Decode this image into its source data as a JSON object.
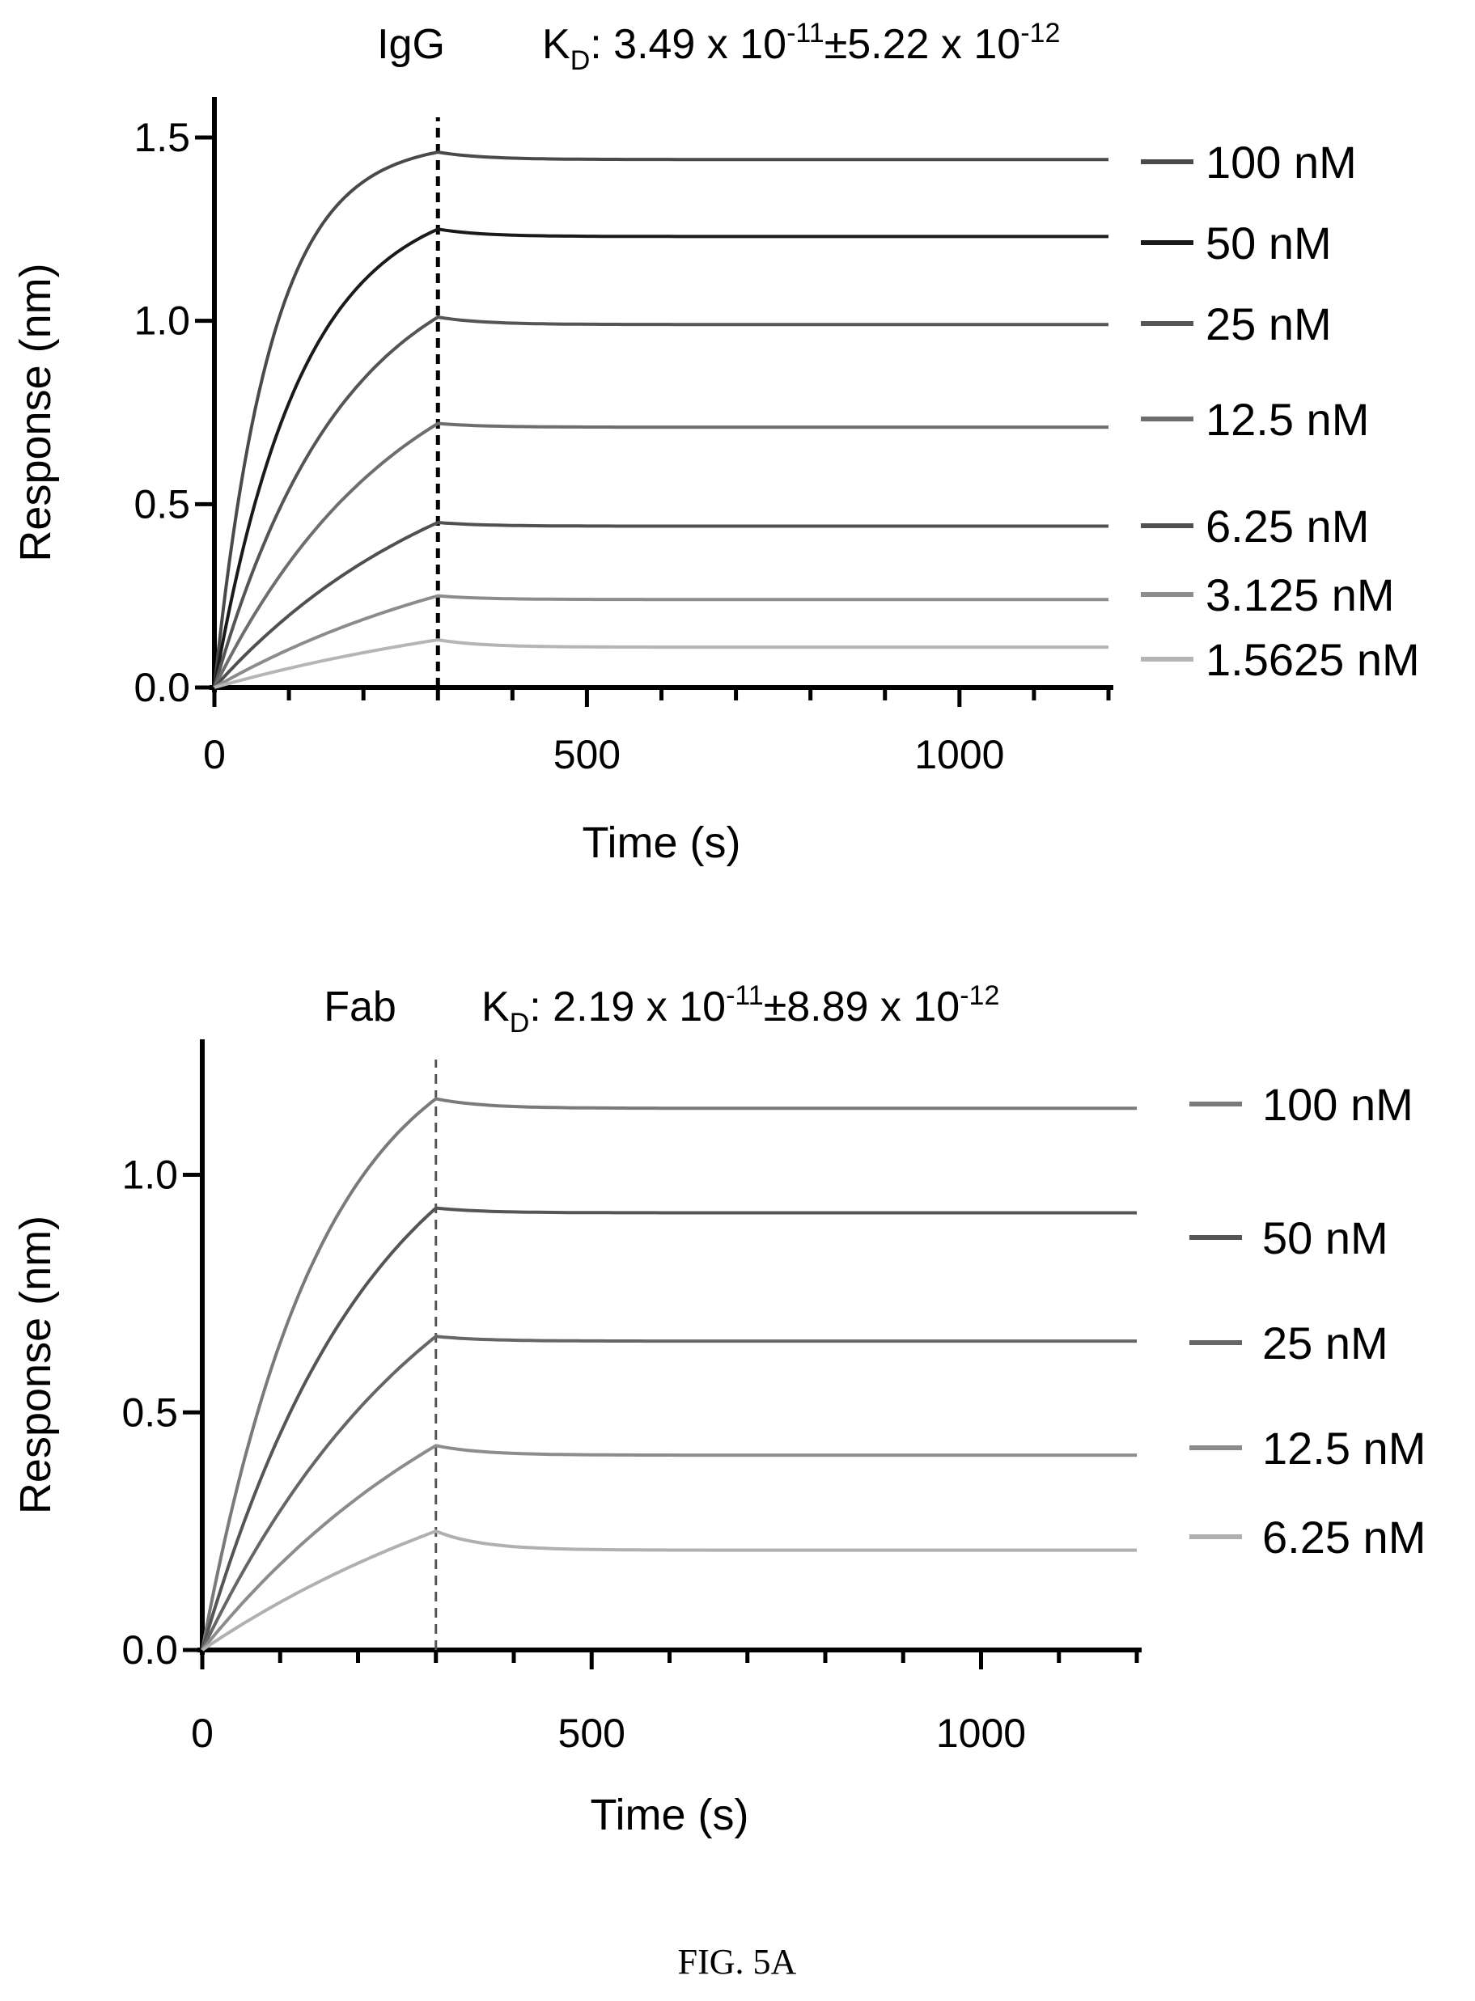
{
  "figure_caption": "FIG. 5A",
  "chart_data": [
    {
      "type": "line",
      "title": "IgG",
      "kd": {
        "label": "K",
        "subscript": "D",
        "mantissa": "3.49 x 10",
        "exponent": "-11",
        "pm": "±",
        "err_mantissa": "5.22 x 10",
        "err_exponent": "-12"
      },
      "xlabel": "Time (s)",
      "ylabel": "Response (nm)",
      "xlim": [
        0,
        1200
      ],
      "ylim": [
        0,
        1.5
      ],
      "x_ticks": [
        0,
        500,
        1000
      ],
      "x_tick_labels": [
        "0",
        "500",
        "1000"
      ],
      "y_ticks": [
        0,
        0.5,
        1.0,
        1.5
      ],
      "y_tick_labels": [
        "0.0",
        "0.5",
        "1.0",
        "1.5"
      ],
      "dissociation_start_s": 300,
      "legend_position": "right",
      "series": [
        {
          "name": "100 nM",
          "peak": 1.46,
          "end": 1.44,
          "k_on": 0.013,
          "color": "#4a4a4a"
        },
        {
          "name": "50 nM",
          "peak": 1.25,
          "end": 1.23,
          "k_on": 0.0085,
          "color": "#1a1a1a"
        },
        {
          "name": "25 nM",
          "peak": 1.01,
          "end": 0.99,
          "k_on": 0.0058,
          "color": "#555555"
        },
        {
          "name": "12.5 nM",
          "peak": 0.72,
          "end": 0.71,
          "k_on": 0.004,
          "color": "#6e6e6e"
        },
        {
          "name": "6.25 nM",
          "peak": 0.45,
          "end": 0.44,
          "k_on": 0.003,
          "color": "#505050"
        },
        {
          "name": "3.125 nM",
          "peak": 0.25,
          "end": 0.24,
          "k_on": 0.0024,
          "color": "#8c8c8c"
        },
        {
          "name": "1.5625 nM",
          "peak": 0.13,
          "end": 0.11,
          "k_on": 0.002,
          "color": "#b5b5b5"
        }
      ]
    },
    {
      "type": "line",
      "title": "Fab",
      "kd": {
        "label": "K",
        "subscript": "D",
        "mantissa": "2.19 x 10",
        "exponent": "-11",
        "pm": "±",
        "err_mantissa": "8.89 x 10",
        "err_exponent": "-12"
      },
      "xlabel": "Time (s)",
      "ylabel": "Response (nm)",
      "xlim": [
        0,
        1200
      ],
      "ylim": [
        0,
        1.2
      ],
      "x_ticks": [
        0,
        500,
        1000
      ],
      "x_tick_labels": [
        "0",
        "500",
        "1000"
      ],
      "y_ticks": [
        0,
        0.5,
        1.0
      ],
      "y_tick_labels": [
        "0.0",
        "0.5",
        "1.0"
      ],
      "dissociation_start_s": 300,
      "legend_position": "right",
      "series": [
        {
          "name": "100 nM",
          "peak": 1.16,
          "end": 1.14,
          "k_on": 0.0065,
          "color": "#7a7a7a"
        },
        {
          "name": "50 nM",
          "peak": 0.93,
          "end": 0.92,
          "k_on": 0.0045,
          "color": "#555555"
        },
        {
          "name": "25 nM",
          "peak": 0.66,
          "end": 0.65,
          "k_on": 0.0032,
          "color": "#666666"
        },
        {
          "name": "12.5 nM",
          "peak": 0.43,
          "end": 0.41,
          "k_on": 0.0025,
          "color": "#8c8c8c"
        },
        {
          "name": "6.25 nM",
          "peak": 0.25,
          "end": 0.21,
          "k_on": 0.002,
          "color": "#b0b0b0"
        }
      ]
    }
  ]
}
